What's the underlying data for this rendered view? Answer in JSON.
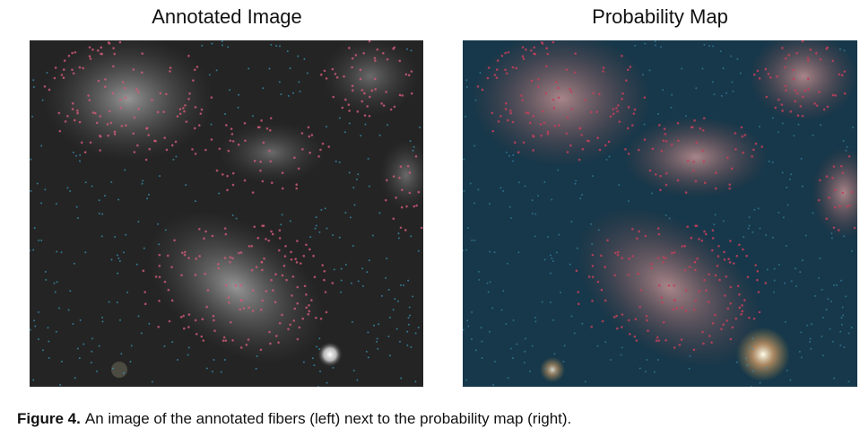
{
  "panels": [
    {
      "title": "Annotated Image"
    },
    {
      "title": "Probability Map"
    }
  ],
  "caption": {
    "label": "Figure 4.",
    "text": "An image of the annotated fibers (left) next to the probability map (right)."
  }
}
